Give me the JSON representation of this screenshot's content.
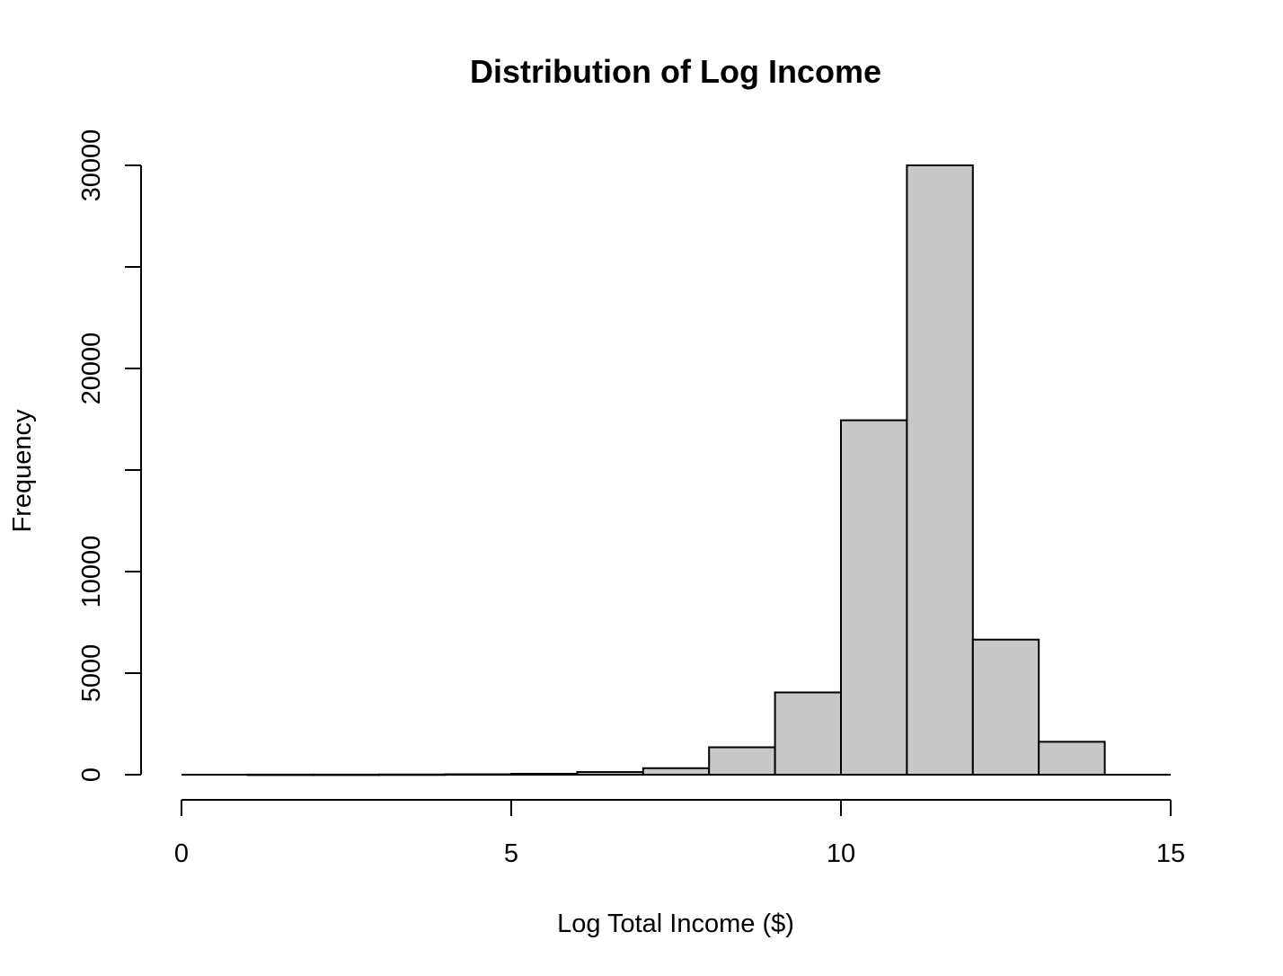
{
  "chart_data": {
    "type": "bar",
    "title": "Distribution of Log Income",
    "xlabel": "Log Total Income ($)",
    "ylabel": "Frequency",
    "bins": [
      {
        "from": 0,
        "to": 1,
        "value": 0
      },
      {
        "from": 1,
        "to": 2,
        "value": 5
      },
      {
        "from": 2,
        "to": 3,
        "value": 5
      },
      {
        "from": 3,
        "to": 4,
        "value": 10
      },
      {
        "from": 4,
        "to": 5,
        "value": 20
      },
      {
        "from": 5,
        "to": 6,
        "value": 45
      },
      {
        "from": 6,
        "to": 7,
        "value": 130
      },
      {
        "from": 7,
        "to": 8,
        "value": 320
      },
      {
        "from": 8,
        "to": 9,
        "value": 1350
      },
      {
        "from": 9,
        "to": 10,
        "value": 4050
      },
      {
        "from": 10,
        "to": 11,
        "value": 17450
      },
      {
        "from": 11,
        "to": 12,
        "value": 30000
      },
      {
        "from": 12,
        "to": 13,
        "value": 6650
      },
      {
        "from": 13,
        "to": 14,
        "value": 1620
      },
      {
        "from": 14,
        "to": 15,
        "value": 0
      }
    ],
    "xlim": [
      0,
      15
    ],
    "ylim": [
      0,
      30000
    ],
    "xticks": [
      0,
      5,
      10,
      15
    ],
    "xtick_labels": [
      "0",
      "5",
      "10",
      "15"
    ],
    "yticks": [
      0,
      5000,
      10000,
      15000,
      20000,
      25000,
      30000
    ],
    "ytick_labels": [
      "0",
      "5000",
      "10000",
      "",
      "20000",
      "",
      "30000"
    ],
    "grid": false,
    "bar_color": "#c8c8c8",
    "edge_color": "#000000"
  }
}
